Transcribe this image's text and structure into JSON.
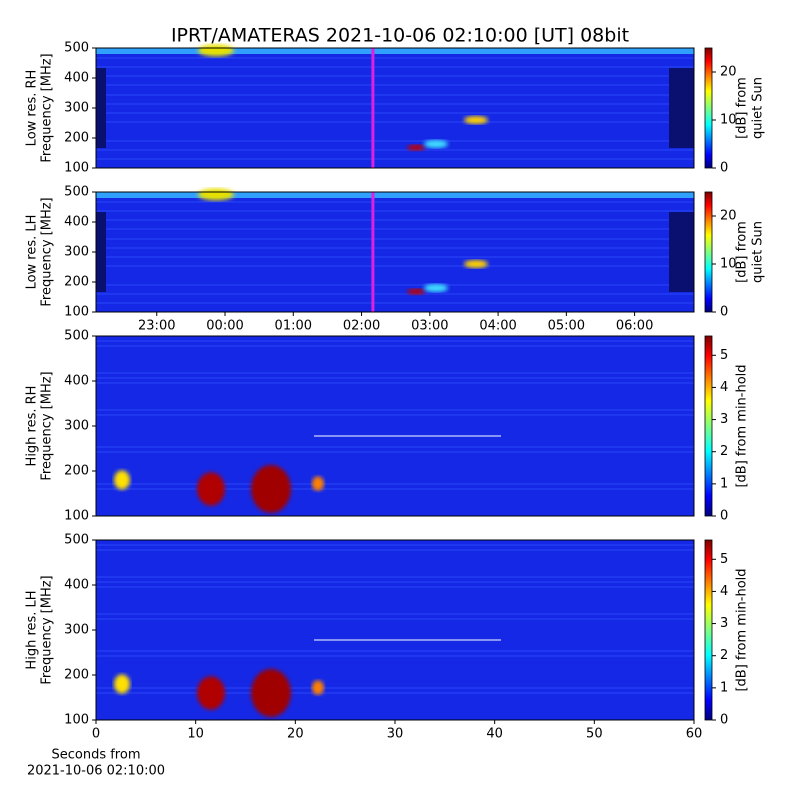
{
  "title": "IPRT/AMATERAS 2021-10-06 02:10:00 [UT]   08bit",
  "chart_data": [
    {
      "type": "spectrogram",
      "ylabel": [
        "Low res. RH",
        "Frequency [MHz]"
      ],
      "xlim": [
        22.11,
        30.87
      ],
      "ylim": [
        100,
        500
      ],
      "yticks": [
        100,
        200,
        300,
        400,
        500
      ],
      "clim": [
        0,
        25
      ],
      "cticks": [
        0,
        10,
        20
      ],
      "clabel": [
        "[dB] from",
        "quiet Sun"
      ],
      "colormap": "jet",
      "vline": {
        "value": 26.1667,
        "color": "#e020e0"
      }
    },
    {
      "type": "spectrogram",
      "ylabel": [
        "Low res. LH",
        "Frequency [MHz]"
      ],
      "xlim": [
        22.11,
        30.87
      ],
      "ylim": [
        100,
        500
      ],
      "yticks": [
        100,
        200,
        300,
        400,
        500
      ],
      "xticks": [
        {
          "value": 23,
          "label": "23:00"
        },
        {
          "value": 24,
          "label": "00:00"
        },
        {
          "value": 25,
          "label": "01:00"
        },
        {
          "value": 26,
          "label": "02:00"
        },
        {
          "value": 27,
          "label": "03:00"
        },
        {
          "value": 28,
          "label": "04:00"
        },
        {
          "value": 29,
          "label": "05:00"
        },
        {
          "value": 30,
          "label": "06:00"
        }
      ],
      "clim": [
        0,
        25
      ],
      "cticks": [
        0,
        10,
        20
      ],
      "clabel": [
        "[dB] from",
        "quiet Sun"
      ],
      "colormap": "jet",
      "vline": {
        "value": 26.1667,
        "color": "#e020e0"
      }
    },
    {
      "type": "spectrogram",
      "ylabel": [
        "High res. RH",
        "Frequency [MHz]"
      ],
      "xlim": [
        0,
        60
      ],
      "ylim": [
        100,
        500
      ],
      "yticks": [
        100,
        200,
        300,
        400,
        500
      ],
      "clim": [
        0,
        5.6
      ],
      "cticks": [
        0,
        1,
        2,
        3,
        4,
        5
      ],
      "clabel": [
        "[dB] from min-hold"
      ],
      "colormap": "jet"
    },
    {
      "type": "spectrogram",
      "ylabel": [
        "High res. LH",
        "Frequency [MHz]"
      ],
      "xlim": [
        0,
        60
      ],
      "ylim": [
        100,
        500
      ],
      "yticks": [
        100,
        200,
        300,
        400,
        500
      ],
      "xticks": [
        0,
        10,
        20,
        30,
        40,
        50,
        60
      ],
      "xlabel": [
        "Seconds from",
        "2021-10-06 02:10:00"
      ],
      "clim": [
        0,
        5.6
      ],
      "cticks": [
        0,
        1,
        2,
        3,
        4,
        5
      ],
      "clabel": [
        "[dB] from min-hold"
      ],
      "colormap": "jet"
    }
  ]
}
